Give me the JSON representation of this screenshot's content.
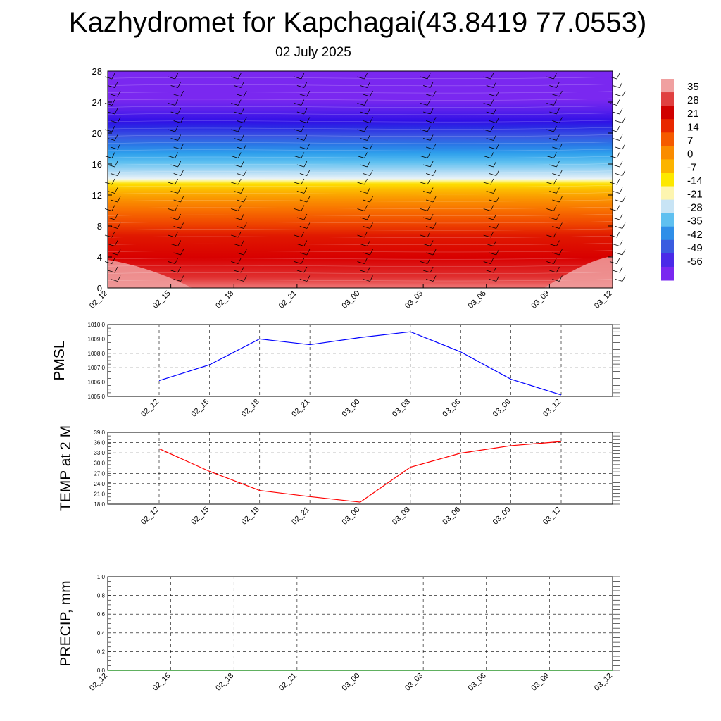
{
  "title": "Kazhydromet for Kapchagai(43.8419 77.0553)",
  "subtitle": "02 July 2025",
  "chart_data": [
    {
      "type": "heatmap",
      "description_note": "",
      "x_ticks": [
        "02_12",
        "02_15",
        "02_18",
        "02_21",
        "03_00",
        "03_03",
        "03_06",
        "03_09",
        "03_12"
      ],
      "y_ticks": [
        "0",
        "4",
        "8",
        "12",
        "16",
        "20",
        "24",
        "28"
      ],
      "ylim": [
        0,
        28
      ],
      "colorbar_labels": [
        "35",
        "28",
        "21",
        "14",
        "7",
        "0",
        "-7",
        "-14",
        "-21",
        "-28",
        "-35",
        "-42",
        "-49",
        "-56"
      ],
      "colorbar_colors": [
        "#f0a0a0",
        "#e04040",
        "#d00000",
        "#e82800",
        "#f55a00",
        "#fa8c00",
        "#fcb400",
        "#fde800",
        "#fdf5b0",
        "#c8e4f5",
        "#5fc0f0",
        "#2f8ee8",
        "#3a5ce0",
        "#4a2ae8",
        "#7a28f0"
      ],
      "grid": false
    },
    {
      "type": "line",
      "ylabel": "PMSL",
      "categories": [
        "02_12",
        "02_15",
        "02_18",
        "02_21",
        "03_00",
        "03_03",
        "03_06",
        "03_09",
        "03_12"
      ],
      "values": [
        1006.1,
        1007.2,
        1009.0,
        1008.6,
        1009.1,
        1009.5,
        1008.1,
        1006.2,
        1005.1
      ],
      "y_ticks": [
        "1005.0",
        "1006.0",
        "1007.0",
        "1008.0",
        "1009.0",
        "1010.0"
      ],
      "ylim": [
        1005.0,
        1010.0
      ],
      "color": "#0000ff",
      "grid": true
    },
    {
      "type": "line",
      "ylabel": "TEMP at 2 M",
      "categories": [
        "02_12",
        "02_15",
        "02_18",
        "02_21",
        "03_00",
        "03_03",
        "03_06",
        "03_09",
        "03_12"
      ],
      "values": [
        34.2,
        27.6,
        22.0,
        20.2,
        18.6,
        28.8,
        32.9,
        35.1,
        36.3
      ],
      "y_ticks": [
        "18.0",
        "21.0",
        "24.0",
        "27.0",
        "30.0",
        "33.0",
        "36.0",
        "39.0"
      ],
      "ylim": [
        18.0,
        39.0
      ],
      "color": "#ff0000",
      "grid": true
    },
    {
      "type": "line",
      "ylabel": "PRECIP, mm",
      "categories": [
        "02_12",
        "02_15",
        "02_18",
        "02_21",
        "03_00",
        "03_03",
        "03_06",
        "03_09",
        "03_12"
      ],
      "values": [
        0,
        0,
        0,
        0,
        0,
        0,
        0,
        0,
        0
      ],
      "y_ticks": [
        "0.0",
        "0.2",
        "0.4",
        "0.6",
        "0.8",
        "1.0"
      ],
      "ylim": [
        0.0,
        1.0
      ],
      "color": "#008000",
      "grid": true
    }
  ]
}
